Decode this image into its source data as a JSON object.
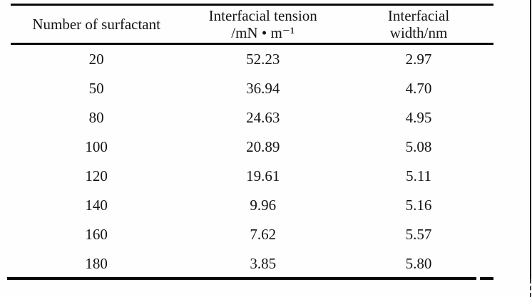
{
  "page": {
    "background": "#fefefe",
    "text_color": "#141414",
    "rule_color": "#0a0a0a",
    "artifacts": [
      "right-edge-scan-line",
      "bottom-rule-gap"
    ]
  },
  "table": {
    "columns": [
      {
        "id": "surfactant",
        "header_lines": [
          "Number of surfactant",
          ""
        ]
      },
      {
        "id": "tension",
        "header_lines": [
          "Interfacial tension",
          "/mN • m⁻¹"
        ]
      },
      {
        "id": "width",
        "header_lines": [
          "Interfacial",
          "width/nm"
        ]
      }
    ],
    "rows": [
      {
        "surfactant": "20",
        "tension": "52.23",
        "width": "2.97"
      },
      {
        "surfactant": "50",
        "tension": "36.94",
        "width": "4.70"
      },
      {
        "surfactant": "80",
        "tension": "24.63",
        "width": "4.95"
      },
      {
        "surfactant": "100",
        "tension": "20.89",
        "width": "5.08"
      },
      {
        "surfactant": "120",
        "tension": "19.61",
        "width": "5.11"
      },
      {
        "surfactant": "140",
        "tension": "9.96",
        "width": "5.16"
      },
      {
        "surfactant": "160",
        "tension": "7.62",
        "width": "5.57"
      },
      {
        "surfactant": "180",
        "tension": "3.85",
        "width": "5.80"
      }
    ]
  }
}
